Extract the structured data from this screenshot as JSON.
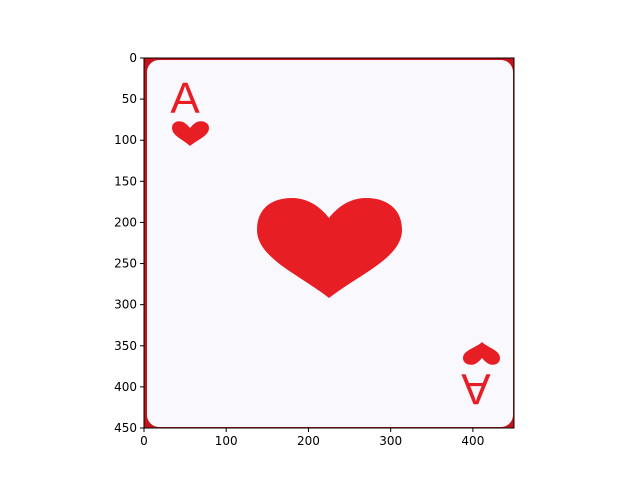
{
  "image": {
    "description_hidden": "",
    "card": {
      "rank": "A",
      "suit_icon": "heart-icon",
      "ink_color": "#e81e25",
      "face_color": "#f9f9fd",
      "border_color": "#c4131a"
    },
    "axes": {
      "x_ticks": [
        0,
        100,
        200,
        300,
        400
      ],
      "y_ticks": [
        0,
        50,
        100,
        150,
        200,
        250,
        300,
        350,
        400,
        450
      ],
      "xlim": [
        0,
        450
      ],
      "ylim": [
        450,
        0
      ]
    }
  }
}
